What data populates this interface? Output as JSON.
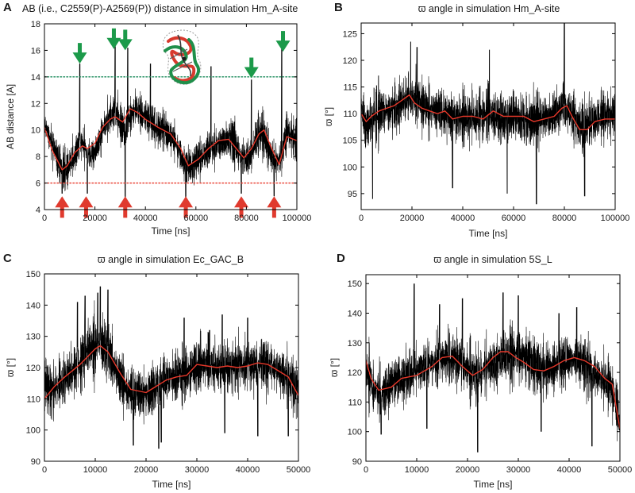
{
  "figure": {
    "colors": {
      "trace": "#000000",
      "average": "#e8382a",
      "upper_threshold": "#1a8a5a",
      "lower_threshold": "#e8382a",
      "green_arrow": "#1c9a4a",
      "red_arrow": "#e03a2e"
    },
    "structure_icon": "rna-structure-icon"
  },
  "chart_data": [
    {
      "panel": "A",
      "type": "line",
      "title": "AB (i.e., C2559(P)-A2569(P)) distance in simulation Hm_A-site",
      "xlabel": "Time [ns]",
      "ylabel": "AB distance [A]",
      "xlim": [
        0,
        100000
      ],
      "ylim": [
        4,
        18
      ],
      "xticks": [
        0,
        20000,
        40000,
        60000,
        80000,
        100000
      ],
      "yticks": [
        4,
        6,
        8,
        10,
        12,
        14,
        16,
        18
      ],
      "xtick_labels": [
        "0",
        "20000",
        "40000",
        "60000",
        "80000",
        "100000"
      ],
      "ytick_labels": [
        "4",
        "6",
        "8",
        "10",
        "12",
        "14",
        "16",
        "18"
      ],
      "noise": {
        "amp": 1.3,
        "seed": 11
      },
      "series": [
        {
          "name": "AB distance",
          "style": "raw",
          "x": [
            0,
            1000,
            3000,
            6000,
            8000,
            10000,
            12000,
            14000,
            16000,
            18000,
            20000,
            22000,
            24000,
            26000,
            28000,
            30000,
            32000,
            34000,
            36000,
            40000,
            44000,
            48000,
            52000,
            55000,
            58000,
            62000,
            66000,
            70000,
            74000,
            78000,
            80000,
            82000,
            84000,
            86000,
            88000,
            90000,
            92000,
            94000,
            96000,
            98000,
            100000
          ],
          "y": [
            10.5,
            10.0,
            9.0,
            7.5,
            7.0,
            7.3,
            8.2,
            9.0,
            8.6,
            8.0,
            8.3,
            9.3,
            10.5,
            11.0,
            11.5,
            10.5,
            10.0,
            11.0,
            11.6,
            11.0,
            10.2,
            10.0,
            9.0,
            7.5,
            7.2,
            8.0,
            8.5,
            9.0,
            9.4,
            8.0,
            7.8,
            8.2,
            9.4,
            10.0,
            9.0,
            8.0,
            7.6,
            8.0,
            10.0,
            9.5,
            9.2
          ],
          "spikes": [
            [
              14000,
              15.0
            ],
            [
              28000,
              16.4
            ],
            [
              33000,
              16.2
            ],
            [
              42000,
              15.0
            ],
            [
              66000,
              14.8
            ],
            [
              82000,
              13.8
            ],
            [
              94000,
              16.2
            ],
            [
              7000,
              5.2
            ],
            [
              17000,
              5.2
            ],
            [
              32000,
              4.8
            ],
            [
              56000,
              4.5
            ],
            [
              78000,
              5.2
            ],
            [
              91000,
              5.0
            ]
          ]
        },
        {
          "name": "running average",
          "style": "average",
          "x": [
            0,
            3000,
            7000,
            9000,
            12000,
            15000,
            17000,
            20000,
            23000,
            26000,
            28000,
            31000,
            34000,
            37000,
            40000,
            45000,
            50000,
            54000,
            57000,
            61000,
            65000,
            69000,
            73000,
            76000,
            79000,
            82000,
            85000,
            87000,
            90000,
            93000,
            96000,
            100000
          ],
          "y": [
            10.2,
            8.5,
            7.0,
            7.3,
            8.3,
            8.8,
            8.6,
            9.0,
            10.2,
            10.8,
            11.0,
            10.6,
            11.6,
            11.3,
            10.8,
            10.2,
            9.7,
            8.6,
            7.3,
            7.8,
            8.6,
            9.2,
            9.3,
            8.6,
            7.9,
            8.6,
            9.7,
            10.0,
            8.6,
            7.4,
            9.5,
            9.2
          ]
        },
        {
          "name": "upper threshold",
          "style": "hline",
          "y": 14,
          "color_key": "upper_threshold"
        },
        {
          "name": "lower threshold",
          "style": "hline",
          "y": 6,
          "color_key": "lower_threshold"
        }
      ],
      "markers": {
        "down_arrows": [
          [
            14000,
            15.0
          ],
          [
            27500,
            16.1
          ],
          [
            32000,
            16.0
          ],
          [
            82000,
            13.9
          ],
          [
            94500,
            15.9
          ]
        ],
        "up_arrows": [
          [
            7000,
            5.0
          ],
          [
            16500,
            5.0
          ],
          [
            32000,
            5.0
          ],
          [
            56000,
            5.0
          ],
          [
            78000,
            5.0
          ],
          [
            91000,
            5.0
          ]
        ]
      }
    },
    {
      "panel": "B",
      "type": "line",
      "title": "ϖ angle in simulation Hm_A-site",
      "xlabel": "Time [ns]",
      "ylabel": "ϖ [°]",
      "xlim": [
        0,
        100000
      ],
      "ylim": [
        92,
        127
      ],
      "xticks": [
        0,
        20000,
        40000,
        60000,
        80000,
        100000
      ],
      "yticks": [
        95,
        100,
        105,
        110,
        115,
        120,
        125
      ],
      "xtick_labels": [
        "0",
        "20000",
        "40000",
        "60000",
        "80000",
        "100000"
      ],
      "ytick_labels": [
        "95",
        "100",
        "105",
        "110",
        "115",
        "120",
        "125"
      ],
      "noise": {
        "amp": 4.5,
        "seed": 23
      },
      "series": [
        {
          "name": "angle",
          "style": "raw",
          "x": [
            0,
            2000,
            5000,
            10000,
            15000,
            20000,
            25000,
            30000,
            35000,
            40000,
            45000,
            50000,
            55000,
            60000,
            65000,
            70000,
            75000,
            80000,
            82000,
            85000,
            88000,
            90000,
            95000,
            100000
          ],
          "y": [
            112,
            107,
            110,
            110.5,
            111.5,
            113.5,
            111,
            110.5,
            109.5,
            109.5,
            109,
            110.5,
            109,
            109.5,
            108.5,
            109.5,
            109.5,
            111.5,
            110.5,
            108.5,
            107,
            108.5,
            109.5,
            109.5
          ],
          "spikes": [
            [
              19500,
              123.5
            ],
            [
              22000,
              122.5
            ],
            [
              80000,
              127.0
            ],
            [
              50500,
              122.0
            ],
            [
              4500,
              94.0
            ],
            [
              69000,
              93.0
            ],
            [
              57500,
              95.0
            ],
            [
              88000,
              94.5
            ],
            [
              36000,
              96.0
            ]
          ]
        },
        {
          "name": "running average",
          "style": "average",
          "x": [
            0,
            2000,
            4000,
            7000,
            10000,
            13000,
            16000,
            19000,
            21000,
            24000,
            27000,
            30000,
            33000,
            36000,
            40000,
            44000,
            48000,
            52000,
            56000,
            60000,
            64000,
            68000,
            72000,
            76000,
            79000,
            81000,
            83000,
            86000,
            89000,
            92000,
            96000,
            100000
          ],
          "y": [
            110,
            108.5,
            109.5,
            110.5,
            111,
            111.5,
            112.5,
            113.5,
            112,
            111,
            110.5,
            110,
            110.5,
            109,
            109.5,
            109.5,
            109,
            110.5,
            109.5,
            109.5,
            109.5,
            108.5,
            109,
            109.5,
            111,
            111.5,
            109.5,
            107,
            107,
            108.5,
            109,
            109
          ]
        }
      ]
    },
    {
      "panel": "C",
      "type": "line",
      "title": "ϖ angle in simulation Ec_GAC_B",
      "xlabel": "Time [ns]",
      "ylabel": "ϖ [°]",
      "xlim": [
        0,
        50000
      ],
      "ylim": [
        90,
        150
      ],
      "xticks": [
        0,
        10000,
        20000,
        30000,
        40000,
        50000
      ],
      "yticks": [
        90,
        100,
        110,
        120,
        130,
        140,
        150
      ],
      "xtick_labels": [
        "0",
        "10000",
        "20000",
        "30000",
        "40000",
        "50000"
      ],
      "ytick_labels": [
        "90",
        "100",
        "110",
        "120",
        "130",
        "140",
        "150"
      ],
      "noise": {
        "amp": 8.0,
        "seed": 37
      },
      "series": [
        {
          "name": "angle",
          "style": "raw",
          "x": [
            0,
            1500,
            3000,
            6000,
            8000,
            10000,
            11000,
            12000,
            14000,
            16000,
            18000,
            20000,
            22000,
            24000,
            26000,
            28000,
            30000,
            32000,
            34000,
            36000,
            38000,
            40000,
            42000,
            44000,
            46000,
            48000,
            50000
          ],
          "y": [
            115,
            112,
            115,
            119,
            124,
            127,
            128,
            126,
            120,
            113,
            112,
            112,
            114,
            116,
            117,
            118,
            121,
            122,
            120,
            120,
            121,
            121,
            121,
            121,
            119,
            117,
            112
          ],
          "spikes": [
            [
              11000,
              146.0
            ],
            [
              10500,
              144.0
            ],
            [
              12500,
              145.0
            ],
            [
              8000,
              143.0
            ],
            [
              6500,
              141.0
            ],
            [
              35000,
              137.0
            ],
            [
              27500,
              136.0
            ],
            [
              40000,
              136.0
            ],
            [
              32500,
              132.0
            ],
            [
              17500,
              95.0
            ],
            [
              22500,
              94.0
            ],
            [
              23000,
              96.0
            ],
            [
              48000,
              98.0
            ],
            [
              42000,
              98.0
            ],
            [
              35500,
              99.0
            ]
          ]
        },
        {
          "name": "running average",
          "style": "average",
          "x": [
            0,
            2000,
            4000,
            7000,
            10000,
            11000,
            12500,
            15000,
            17000,
            20000,
            22000,
            24000,
            26000,
            28000,
            30000,
            32000,
            34000,
            36000,
            38000,
            40000,
            42000,
            44000,
            46000,
            48000,
            50000
          ],
          "y": [
            110,
            114,
            117,
            121,
            126,
            127,
            125,
            118,
            113,
            112,
            114,
            116,
            117,
            117.5,
            121,
            120.5,
            120,
            120.5,
            120,
            120.5,
            121.5,
            121,
            119,
            117,
            111
          ]
        }
      ]
    },
    {
      "panel": "D",
      "type": "line",
      "title": "ϖ angle in simulation 5S_L",
      "xlabel": "Time [ns]",
      "ylabel": "ϖ [°]",
      "xlim": [
        0,
        50000
      ],
      "ylim": [
        90,
        153
      ],
      "xticks": [
        0,
        10000,
        20000,
        30000,
        40000,
        50000
      ],
      "yticks": [
        90,
        100,
        110,
        120,
        130,
        140,
        150
      ],
      "xtick_labels": [
        "0",
        "10000",
        "20000",
        "30000",
        "40000",
        "50000"
      ],
      "ytick_labels": [
        "90",
        "100",
        "110",
        "120",
        "130",
        "140",
        "150"
      ],
      "noise": {
        "amp": 8.5,
        "seed": 53
      },
      "series": [
        {
          "name": "angle",
          "style": "raw",
          "x": [
            0,
            1500,
            3000,
            6000,
            8000,
            10000,
            12000,
            14000,
            16000,
            18000,
            20000,
            22000,
            24000,
            26000,
            28000,
            30000,
            32000,
            34000,
            36000,
            38000,
            40000,
            42000,
            44000,
            46000,
            48000,
            49500,
            50000
          ],
          "y": [
            122,
            114,
            113,
            117,
            119,
            121,
            122,
            124,
            125,
            124,
            121,
            119,
            122,
            124,
            126,
            126,
            125,
            122,
            121,
            123,
            125,
            124,
            121,
            118,
            116,
            108,
            101
          ],
          "spikes": [
            [
              9500,
              150.0
            ],
            [
              14500,
              143.0
            ],
            [
              19000,
              145.0
            ],
            [
              27000,
              147.0
            ],
            [
              30000,
              146.0
            ],
            [
              41500,
              142.0
            ],
            [
              38000,
              140.0
            ],
            [
              22000,
              93.0
            ],
            [
              44500,
              95.0
            ],
            [
              3000,
              99.0
            ],
            [
              12000,
              101.0
            ],
            [
              34500,
              100.0
            ]
          ]
        },
        {
          "name": "running average",
          "style": "average",
          "x": [
            0,
            1000,
            2500,
            5000,
            7000,
            10000,
            13000,
            15000,
            17000,
            19000,
            21000,
            23000,
            25000,
            26500,
            28000,
            29500,
            31000,
            33000,
            35000,
            37000,
            39000,
            41000,
            43000,
            45000,
            47000,
            48500,
            50000
          ],
          "y": [
            124,
            118,
            114,
            115,
            118,
            119,
            122,
            125,
            125.5,
            122,
            119,
            121,
            125,
            127,
            127,
            125,
            123.5,
            121,
            120.5,
            122,
            124,
            125,
            124,
            122,
            118,
            116,
            101
          ]
        }
      ]
    }
  ]
}
